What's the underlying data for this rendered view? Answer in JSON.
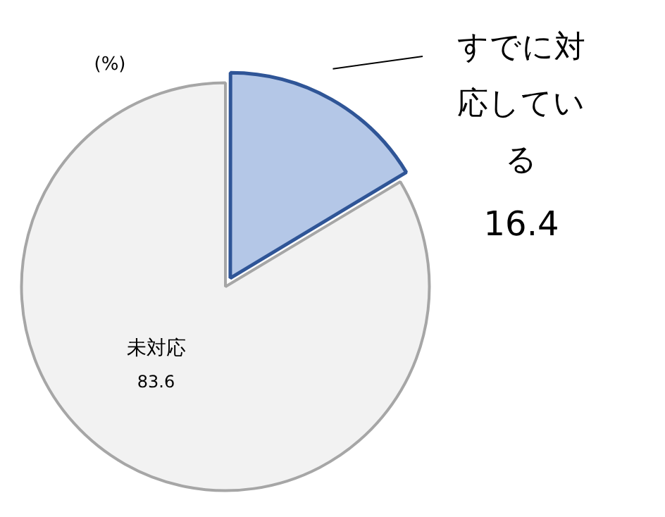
{
  "chart_data": {
    "type": "pie",
    "categories": [
      "すでに対応している",
      "未対応"
    ],
    "values": [
      16.4,
      83.6
    ],
    "colors": [
      "#b4c7e7",
      "#f2f2f2"
    ],
    "data_labels": true,
    "legend": false,
    "annotations": [
      "(%)"
    ]
  }
}
